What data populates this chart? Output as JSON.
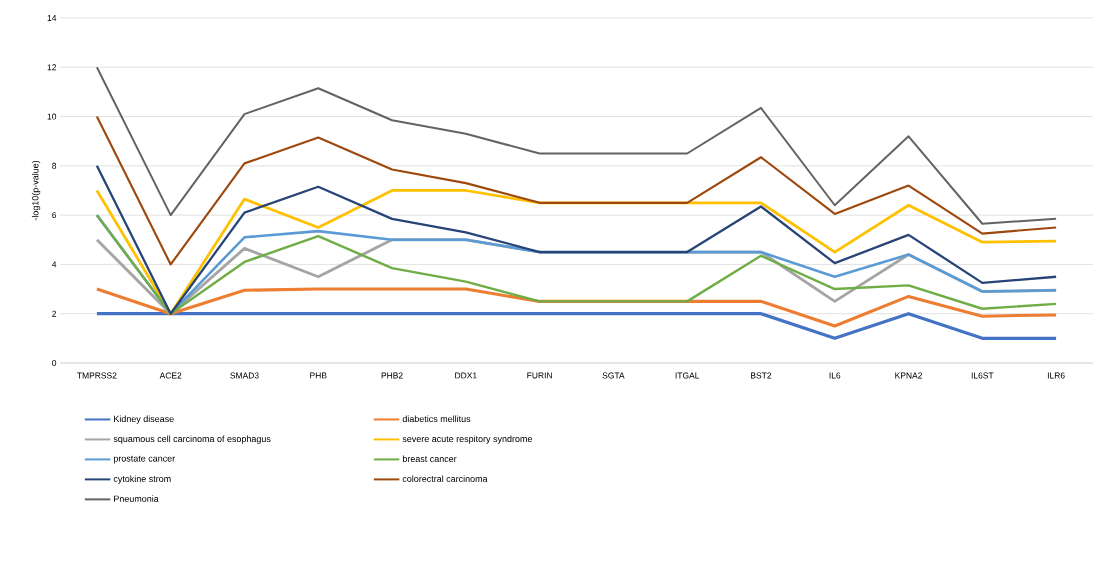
{
  "chart_data": {
    "type": "line",
    "ylabel": "-log10(p-value)",
    "categories": [
      "TMPRSS2",
      "ACE2",
      "SMAD3",
      "PHB",
      "PHB2",
      "DDX1",
      "FURIN",
      "SGTA",
      "ITGAL",
      "BST2",
      "IL6",
      "KPNA2",
      "IL6ST",
      "ILR6"
    ],
    "series": [
      {
        "name": "Kidney disease",
        "color": "#4472c4",
        "values": [
          2,
          2,
          2,
          2,
          2,
          2,
          2,
          2,
          2,
          2,
          1,
          2,
          1,
          1
        ]
      },
      {
        "name": "diabetics mellitus",
        "color": "#ed7d31",
        "values": [
          3,
          2,
          2.95,
          3,
          3,
          3,
          2.5,
          2.5,
          2.5,
          2.5,
          1.5,
          2.7,
          1.9,
          1.95
        ]
      },
      {
        "name": "squamous cell carcinoma of esophagus",
        "color": "#a5a5a5",
        "values": [
          5,
          2,
          4.65,
          3.5,
          5,
          5,
          4.5,
          4.5,
          4.5,
          4.5,
          2.5,
          4.4,
          2.9,
          2.95
        ]
      },
      {
        "name": "severe acute respitory syndrome",
        "color": "#ffc000",
        "values": [
          7,
          2,
          6.65,
          5.5,
          7,
          7,
          6.5,
          6.5,
          6.5,
          6.5,
          4.5,
          6.4,
          4.9,
          4.95
        ]
      },
      {
        "name": "prostate cancer",
        "color": "#5b9bd5",
        "values": [
          6,
          2,
          5.1,
          5.35,
          5,
          5,
          4.5,
          4.5,
          4.5,
          4.5,
          3.5,
          4.4,
          2.9,
          2.95
        ]
      },
      {
        "name": "breast cancer",
        "color": "#70ad47",
        "values": [
          6,
          2,
          4.1,
          5.15,
          3.85,
          3.3,
          2.5,
          2.5,
          2.5,
          4.35,
          3,
          3.15,
          2.2,
          2.4
        ]
      },
      {
        "name": "cytokine strom",
        "color": "#264478",
        "values": [
          8,
          2,
          6.1,
          7.15,
          5.85,
          5.3,
          4.5,
          4.5,
          4.5,
          6.35,
          4.05,
          5.2,
          3.25,
          3.5
        ]
      },
      {
        "name": "colorectral carcinoma",
        "color": "#9e480e",
        "values": [
          10,
          4,
          8.1,
          9.15,
          7.85,
          7.3,
          6.5,
          6.5,
          6.5,
          8.35,
          6.05,
          7.2,
          5.25,
          5.5
        ]
      },
      {
        "name": "Pneumonia",
        "color": "#636363",
        "values": [
          12,
          6,
          10.1,
          11.15,
          9.85,
          9.3,
          8.5,
          8.5,
          8.5,
          10.35,
          6.4,
          9.2,
          5.65,
          5.85
        ]
      }
    ],
    "ylim": [
      0,
      14
    ],
    "yticks": [
      0,
      2,
      4,
      6,
      8,
      10,
      12,
      14
    ],
    "grid": "y",
    "legend": "bottom",
    "marker": "none",
    "line_style": "solid"
  }
}
